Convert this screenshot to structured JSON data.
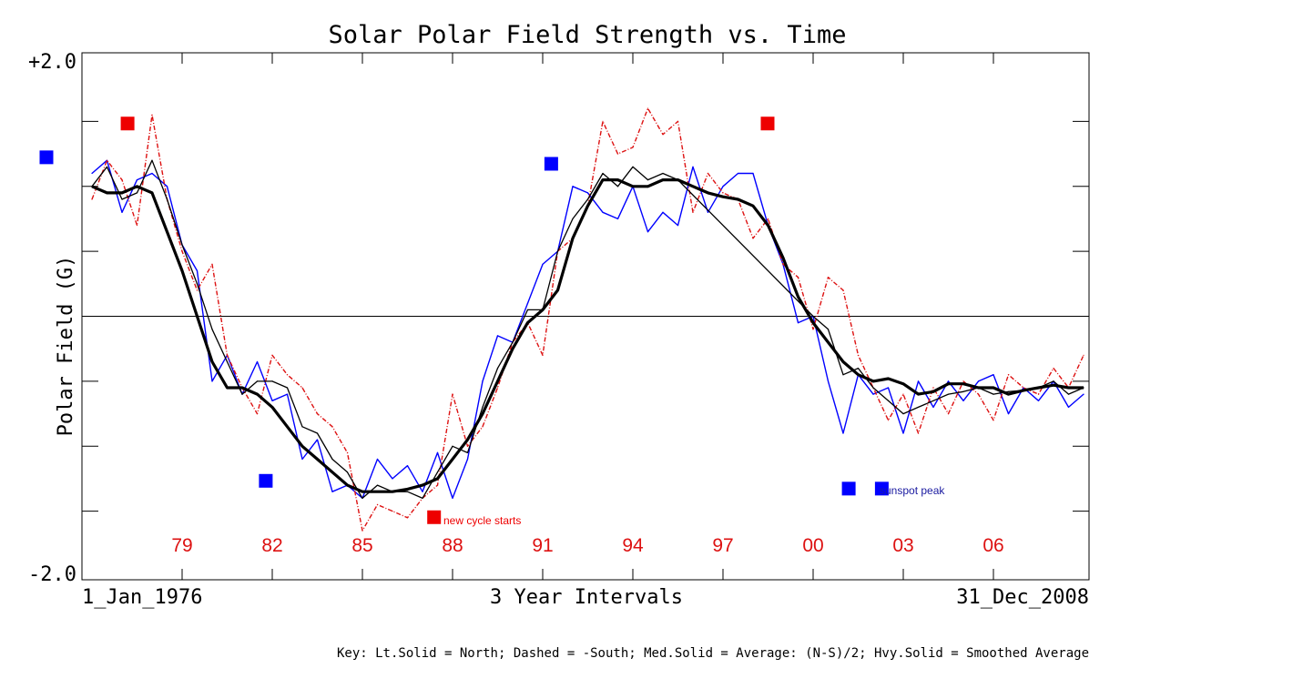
{
  "chart_data": {
    "type": "line",
    "title": "Solar Polar Field Strength vs. Time",
    "ylabel": "Polar Field (G)",
    "xlabel": "3 Year Intervals",
    "x_start_label": "1_Jan_1976",
    "x_end_label": "31_Dec_2008",
    "ylim": [
      -2.0,
      2.0
    ],
    "y_tick_labels": [
      "+2.0",
      "-2.0"
    ],
    "y_ticks": [
      -1.5,
      -1.0,
      -0.5,
      0.0,
      0.5,
      1.0,
      1.5
    ],
    "zero_line": true,
    "grid": false,
    "x_range": [
      1976.0,
      2009.0
    ],
    "year_labels": [
      {
        "label": "79",
        "x": 1979.0
      },
      {
        "label": "82",
        "x": 1982.0
      },
      {
        "label": "85",
        "x": 1985.0
      },
      {
        "label": "88",
        "x": 1988.0
      },
      {
        "label": "91",
        "x": 1991.0
      },
      {
        "label": "94",
        "x": 1994.0
      },
      {
        "label": "97",
        "x": 1997.0
      },
      {
        "label": "00",
        "x": 2000.0
      },
      {
        "label": "03",
        "x": 2003.0
      },
      {
        "label": "06",
        "x": 2006.0
      }
    ],
    "legend_key": "Key: Lt.Solid = North; Dashed = -South; Med.Solid = Average: (N-S)/2; Hvy.Solid = Smoothed Average",
    "series": [
      {
        "key": "north",
        "style": "light-solid",
        "color": "#0000ff",
        "x": [
          1976.0,
          1976.5,
          1977.0,
          1977.5,
          1978.0,
          1978.5,
          1979.0,
          1979.5,
          1980.0,
          1980.5,
          1981.0,
          1981.5,
          1982.0,
          1982.5,
          1983.0,
          1983.5,
          1984.0,
          1984.5,
          1985.0,
          1985.5,
          1986.0,
          1986.5,
          1987.0,
          1987.5,
          1988.0,
          1988.5,
          1989.0,
          1989.5,
          1990.0,
          1990.5,
          1991.0,
          1991.5,
          1992.0,
          1992.5,
          1993.0,
          1993.5,
          1994.0,
          1994.5,
          1995.0,
          1995.5,
          1996.0,
          1996.5,
          1997.0,
          1997.5,
          1998.0,
          1998.5,
          1999.0,
          1999.5,
          2000.0,
          2000.5,
          2001.0,
          2001.5,
          2002.0,
          2002.5,
          2003.0,
          2003.5,
          2004.0,
          2004.5,
          2005.0,
          2005.5,
          2006.0,
          2006.5,
          2007.0,
          2007.5,
          2008.0,
          2008.5,
          2009.0
        ],
        "y": [
          1.1,
          1.2,
          0.8,
          1.05,
          1.1,
          1.0,
          0.55,
          0.35,
          -0.5,
          -0.3,
          -0.6,
          -0.35,
          -0.65,
          -0.6,
          -1.1,
          -0.95,
          -1.35,
          -1.3,
          -1.4,
          -1.1,
          -1.25,
          -1.15,
          -1.35,
          -1.05,
          -1.4,
          -1.1,
          -0.5,
          -0.15,
          -0.2,
          0.1,
          0.4,
          0.5,
          1.0,
          0.95,
          0.8,
          0.75,
          1.0,
          0.65,
          0.8,
          0.7,
          1.15,
          0.8,
          1.0,
          1.1,
          1.1,
          0.7,
          0.4,
          -0.05,
          0.0,
          -0.5,
          -0.9,
          -0.45,
          -0.6,
          -0.55,
          -0.9,
          -0.5,
          -0.7,
          -0.5,
          -0.65,
          -0.5,
          -0.45,
          -0.75,
          -0.55,
          -0.65,
          -0.5,
          -0.7,
          -0.6
        ]
      },
      {
        "key": "south_negated",
        "style": "dashed",
        "color": "#dd1111",
        "x": [
          1976.0,
          1976.5,
          1977.0,
          1977.5,
          1978.0,
          1978.5,
          1979.0,
          1979.5,
          1980.0,
          1980.5,
          1981.0,
          1981.5,
          1982.0,
          1982.5,
          1983.0,
          1983.5,
          1984.0,
          1984.5,
          1985.0,
          1985.5,
          1986.0,
          1986.5,
          1987.0,
          1987.5,
          1988.0,
          1988.5,
          1989.0,
          1989.5,
          1990.0,
          1990.5,
          1991.0,
          1991.5,
          1992.0,
          1992.5,
          1993.0,
          1993.5,
          1994.0,
          1994.5,
          1995.0,
          1995.5,
          1996.0,
          1996.5,
          1997.0,
          1997.5,
          1998.0,
          1998.5,
          1999.0,
          1999.5,
          2000.0,
          2000.5,
          2001.0,
          2001.5,
          2002.0,
          2002.5,
          2003.0,
          2003.5,
          2004.0,
          2004.5,
          2005.0,
          2005.5,
          2006.0,
          2006.5,
          2007.0,
          2007.5,
          2008.0,
          2008.5,
          2009.0
        ],
        "y": [
          0.9,
          1.2,
          1.05,
          0.7,
          1.55,
          0.9,
          0.5,
          0.2,
          0.4,
          -0.3,
          -0.55,
          -0.75,
          -0.3,
          -0.45,
          -0.55,
          -0.75,
          -0.85,
          -1.05,
          -1.65,
          -1.45,
          -1.5,
          -1.55,
          -1.4,
          -1.3,
          -0.6,
          -1.0,
          -0.85,
          -0.55,
          -0.2,
          -0.05,
          -0.3,
          0.5,
          0.6,
          0.85,
          1.5,
          1.25,
          1.3,
          1.6,
          1.4,
          1.5,
          0.8,
          1.1,
          0.95,
          0.9,
          0.6,
          0.75,
          0.4,
          0.3,
          -0.1,
          0.3,
          0.2,
          -0.3,
          -0.55,
          -0.8,
          -0.6,
          -0.9,
          -0.55,
          -0.75,
          -0.5,
          -0.6,
          -0.8,
          -0.45,
          -0.55,
          -0.6,
          -0.4,
          -0.55,
          -0.3
        ]
      },
      {
        "key": "average",
        "style": "medium-solid",
        "color": "#000000",
        "x": [
          1976.0,
          1976.5,
          1977.0,
          1977.5,
          1978.0,
          1978.5,
          1979.0,
          1979.5,
          1980.0,
          1980.5,
          1981.0,
          1981.5,
          1982.0,
          1982.5,
          1983.0,
          1983.5,
          1984.0,
          1984.5,
          1985.0,
          1985.5,
          1986.0,
          1986.5,
          1987.0,
          1987.5,
          1988.0,
          1988.5,
          1989.0,
          1989.5,
          1990.0,
          1990.5,
          1991.0,
          1991.5,
          1992.0,
          1992.5,
          1993.0,
          1993.5,
          1994.0,
          1994.5,
          1995.0,
          1995.5,
          2000.0,
          2000.5,
          2001.0,
          2001.5,
          2002.0,
          2002.5,
          2003.0,
          2003.5,
          2004.0,
          2004.5,
          2005.0,
          2005.5,
          2006.0,
          2006.5,
          2007.0,
          2007.5,
          2008.0,
          2008.5,
          2009.0
        ],
        "y": [
          1.0,
          1.15,
          0.9,
          0.95,
          1.2,
          0.9,
          0.55,
          0.25,
          -0.1,
          -0.35,
          -0.6,
          -0.5,
          -0.5,
          -0.55,
          -0.85,
          -0.9,
          -1.1,
          -1.2,
          -1.4,
          -1.3,
          -1.35,
          -1.35,
          -1.4,
          -1.2,
          -1.0,
          -1.05,
          -0.7,
          -0.4,
          -0.2,
          0.05,
          0.05,
          0.5,
          0.75,
          0.9,
          1.1,
          1.0,
          1.15,
          1.05,
          1.1,
          1.05,
          0.0,
          -0.1,
          -0.45,
          -0.4,
          -0.55,
          -0.65,
          -0.75,
          -0.7,
          -0.65,
          -0.6,
          -0.58,
          -0.55,
          -0.6,
          -0.58,
          -0.57,
          -0.55,
          -0.5,
          -0.6,
          -0.55
        ]
      },
      {
        "key": "smoothed_average",
        "style": "heavy-solid",
        "color": "#000000",
        "x": [
          1976.0,
          1976.5,
          1977.0,
          1977.5,
          1978.0,
          1978.5,
          1979.0,
          1979.5,
          1980.0,
          1980.5,
          1981.0,
          1981.5,
          1982.0,
          1982.5,
          1983.0,
          1983.5,
          1984.0,
          1984.5,
          1985.0,
          1985.5,
          1986.0,
          1986.5,
          1987.0,
          1987.5,
          1988.0,
          1988.5,
          1989.0,
          1989.5,
          1990.0,
          1990.5,
          1991.0,
          1991.5,
          1992.0,
          1992.5,
          1993.0,
          1993.5,
          1994.0,
          1994.5,
          1995.0,
          1995.5,
          1996.0,
          1996.5,
          1997.0,
          1997.5,
          1998.0,
          1998.5,
          1999.0,
          1999.5,
          2000.0,
          2000.5,
          2001.0,
          2001.5,
          2002.0,
          2002.5,
          2003.0,
          2003.5,
          2004.0,
          2004.5,
          2005.0,
          2005.5,
          2006.0,
          2006.5,
          2007.0,
          2007.5,
          2008.0,
          2008.5,
          2009.0
        ],
        "y": [
          1.0,
          0.95,
          0.95,
          1.0,
          0.95,
          0.65,
          0.35,
          0.0,
          -0.35,
          -0.55,
          -0.55,
          -0.6,
          -0.7,
          -0.85,
          -1.0,
          -1.1,
          -1.2,
          -1.3,
          -1.35,
          -1.35,
          -1.35,
          -1.33,
          -1.3,
          -1.25,
          -1.1,
          -0.95,
          -0.75,
          -0.5,
          -0.25,
          -0.05,
          0.05,
          0.2,
          0.6,
          0.85,
          1.05,
          1.05,
          1.0,
          1.0,
          1.05,
          1.05,
          1.0,
          0.95,
          0.92,
          0.9,
          0.85,
          0.7,
          0.45,
          0.15,
          -0.05,
          -0.2,
          -0.35,
          -0.45,
          -0.5,
          -0.48,
          -0.52,
          -0.6,
          -0.58,
          -0.52,
          -0.52,
          -0.55,
          -0.55,
          -0.6,
          -0.57,
          -0.55,
          -0.53,
          -0.55,
          -0.55
        ]
      }
    ],
    "markers": {
      "sunspot_peak": {
        "label": "sunspot peak",
        "color": "#0000ff",
        "points": [
          {
            "x": 1974.5,
            "y": 1.22
          },
          {
            "x": 1981.8,
            "y": -1.27
          },
          {
            "x": 1991.3,
            "y": 1.17
          },
          {
            "x": 2001.2,
            "y": -1.33
          },
          {
            "x": 2002.3,
            "y": -1.33
          }
        ]
      },
      "new_cycle_starts": {
        "label": "new cycle starts",
        "color": "#ee0000",
        "points": [
          {
            "x": 1977.2,
            "y": 1.48
          },
          {
            "x": 1987.4,
            "y": -1.55
          },
          {
            "x": 1998.5,
            "y": 1.48
          }
        ]
      }
    }
  }
}
